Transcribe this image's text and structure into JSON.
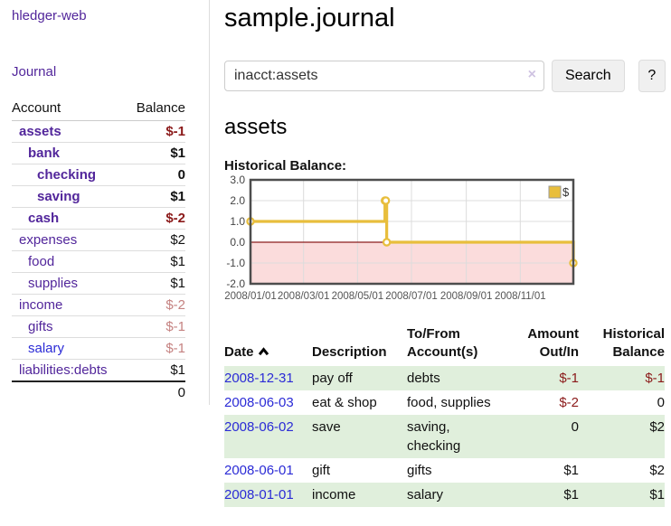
{
  "app": {
    "brand": "hledger-web",
    "nav_journal": "Journal"
  },
  "colors": {
    "link_purple": "#52269b",
    "link_blue": "#2b2bd6",
    "negative_red": "#8b1a1a",
    "pale_red": "#c58281",
    "row_green": "#e0efdc",
    "gold": "#E8BE3C"
  },
  "sidebar": {
    "accounts_header": {
      "account": "Account",
      "balance": "Balance"
    },
    "accounts": [
      {
        "name": "assets",
        "balance": "$-1",
        "indent": 0,
        "bold": true,
        "balance_style": "neg"
      },
      {
        "name": "bank",
        "balance": "$1",
        "indent": 1,
        "bold": true,
        "balance_style": "pos"
      },
      {
        "name": "checking",
        "balance": "0",
        "indent": 2,
        "bold": true,
        "balance_style": "pos"
      },
      {
        "name": "saving",
        "balance": "$1",
        "indent": 2,
        "bold": true,
        "balance_style": "pos"
      },
      {
        "name": "cash",
        "balance": "$-2",
        "indent": 1,
        "bold": true,
        "balance_style": "neg"
      },
      {
        "name": "expenses",
        "balance": "$2",
        "indent": 0,
        "bold": false,
        "balance_style": "pos"
      },
      {
        "name": "food",
        "balance": "$1",
        "indent": 1,
        "bold": false,
        "balance_style": "pos"
      },
      {
        "name": "supplies",
        "balance": "$1",
        "indent": 1,
        "bold": false,
        "balance_style": "pos"
      },
      {
        "name": "income",
        "balance": "$-2",
        "indent": 0,
        "bold": false,
        "balance_style": "negpale"
      },
      {
        "name": "gifts",
        "balance": "$-1",
        "indent": 1,
        "bold": false,
        "balance_style": "negpale"
      },
      {
        "name": "salary",
        "balance": "$-1",
        "indent": 1,
        "bold": false,
        "balance_style": "negpale",
        "link_style": "blue"
      },
      {
        "name": "liabilities:debts",
        "balance": "$1",
        "indent": 0,
        "bold": false,
        "balance_style": "pos"
      }
    ],
    "total": "0"
  },
  "header": {
    "title": "sample.journal"
  },
  "search": {
    "value": "inacct:assets",
    "clear_icon": "×",
    "button": "Search",
    "help_button": "?"
  },
  "main": {
    "section_title": "assets",
    "chart_label": "Historical Balance:"
  },
  "chart_data": {
    "type": "line",
    "step": true,
    "series": [
      {
        "name": "$",
        "color": "#E8BE3C",
        "points": [
          [
            "2008-01-01",
            1
          ],
          [
            "2008-06-01",
            2
          ],
          [
            "2008-06-02",
            2
          ],
          [
            "2008-06-03",
            0
          ],
          [
            "2008-12-31",
            -1
          ]
        ]
      }
    ],
    "x_ticks": [
      "2008/01/01",
      "2008/03/01",
      "2008/05/01",
      "2008/07/01",
      "2008/09/01",
      "2008/11/01"
    ],
    "y_ticks": [
      3.0,
      2.0,
      1.0,
      0.0,
      -1.0,
      -2.0
    ],
    "xlim": [
      "2008-01-01",
      "2008-12-31"
    ],
    "ylim": [
      -2,
      3
    ],
    "grid": true,
    "negative_fill": "#fbdcdc",
    "zero_line_color": "#8b1d1d",
    "legend": {
      "label": "$",
      "position": "top-right"
    }
  },
  "register": {
    "columns": [
      "Date",
      "Description",
      "To/From Account(s)",
      "Amount Out/In",
      "Historical Balance"
    ],
    "rows": [
      {
        "date": "2008-12-31",
        "description": "pay off",
        "accounts": "debts",
        "amount": "$-1",
        "amount_style": "neg",
        "balance": "$-1",
        "balance_style": "neg",
        "shaded": true
      },
      {
        "date": "2008-06-03",
        "description": "eat & shop",
        "accounts": "food, supplies",
        "amount": "$-2",
        "amount_style": "neg",
        "balance": "0",
        "balance_style": "pos",
        "shaded": false
      },
      {
        "date": "2008-06-02",
        "description": "save",
        "accounts": "saving, checking",
        "amount": "0",
        "amount_style": "pos",
        "balance": "$2",
        "balance_style": "pos",
        "shaded": true
      },
      {
        "date": "2008-06-01",
        "description": "gift",
        "accounts": "gifts",
        "amount": "$1",
        "amount_style": "pos",
        "balance": "$2",
        "balance_style": "pos",
        "shaded": false
      },
      {
        "date": "2008-01-01",
        "description": "income",
        "accounts": "salary",
        "amount": "$1",
        "amount_style": "pos",
        "balance": "$1",
        "balance_style": "pos",
        "shaded": true
      }
    ]
  }
}
